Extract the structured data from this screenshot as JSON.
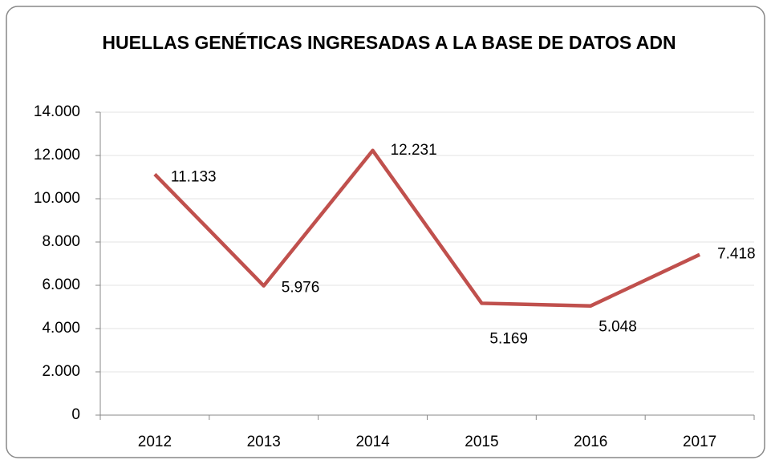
{
  "chart_data": {
    "type": "line",
    "title": "HUELLAS GENÉTICAS INGRESADAS A LA BASE DE DATOS ADN",
    "categories": [
      "2012",
      "2013",
      "2014",
      "2015",
      "2016",
      "2017"
    ],
    "series": [
      {
        "color": "#c0504d",
        "values": [
          11133,
          5976,
          12231,
          5169,
          5048,
          7418
        ],
        "value_labels": [
          "11.133",
          "5.976",
          "12.231",
          "5.169",
          "5.048",
          "7.418"
        ]
      }
    ],
    "ylim": [
      0,
      14000
    ],
    "yticks": [
      0,
      {
        "value": 2000,
        "label": "2.000"
      },
      {
        "value": 4000,
        "label": "4.000"
      },
      {
        "value": 6000,
        "label": "6.000"
      },
      {
        "value": 8000,
        "label": "8.000"
      },
      {
        "value": 10000,
        "label": "10.000"
      },
      {
        "value": 12000,
        "label": "12.000"
      },
      {
        "value": 14000,
        "label": "14.000"
      }
    ],
    "grid": true
  }
}
